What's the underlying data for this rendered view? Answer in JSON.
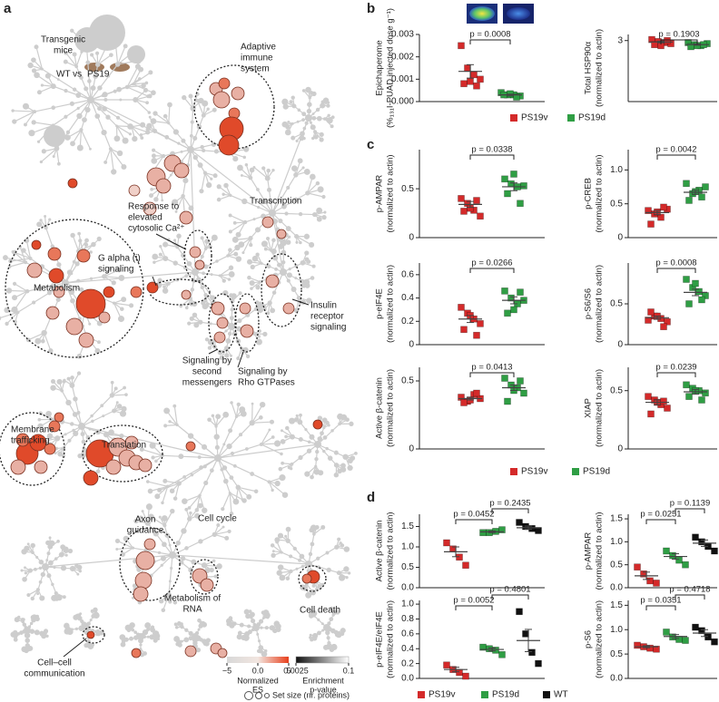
{
  "panel_labels": [
    "a",
    "b",
    "c",
    "d"
  ],
  "diagram": {
    "mice": {
      "lines": [
        "Transgenic",
        "mice"
      ],
      "wt": "WT vs",
      "ps19": "PS19"
    },
    "pathways": [
      {
        "lines": [
          "Adaptive",
          "immune",
          "system"
        ]
      },
      {
        "lines": [
          "Response to",
          "elevated",
          "cytosolic Ca²⁺"
        ]
      },
      {
        "lines": [
          "Transcription"
        ]
      },
      {
        "lines": [
          "G alpha (i)",
          "signaling"
        ]
      },
      {
        "lines": [
          "Metabolism"
        ]
      },
      {
        "lines": [
          "Insulin",
          "receptor",
          "signaling"
        ]
      },
      {
        "lines": [
          "Signaling by",
          "second",
          "messengers"
        ]
      },
      {
        "lines": [
          "Signaling by",
          "Rho GTPases"
        ]
      },
      {
        "lines": [
          "Membrane",
          "trafficking"
        ]
      },
      {
        "lines": [
          "Translation"
        ]
      },
      {
        "lines": [
          "Axon",
          "guidance"
        ]
      },
      {
        "lines": [
          "Cell cycle"
        ]
      },
      {
        "lines": [
          "Metabolism of",
          "RNA"
        ]
      },
      {
        "lines": [
          "Cell death"
        ]
      },
      {
        "lines": [
          "Cell–cell",
          "communication"
        ]
      }
    ],
    "legend": {
      "es_title": [
        "Normalized",
        "ES"
      ],
      "es_lim": [
        -5,
        5
      ],
      "es_ticks": [
        {
          "value": -5,
          "label": "−5"
        },
        {
          "value": 0,
          "label": "0.0"
        },
        5
      ],
      "p_title": [
        "Enrichment",
        "p-value"
      ],
      "p_lim": [
        0.0025,
        0.1
      ],
      "p_ticks": [
        0.0025,
        0.1
      ],
      "size_title": "Set size (nr. proteins)"
    }
  },
  "legends": [
    {
      "entries": [
        {
          "name": "PS19v",
          "color": "#d42a2a"
        },
        {
          "name": "PS19d",
          "color": "#2f9e44"
        }
      ]
    },
    {
      "entries": [
        {
          "name": "PS19v",
          "color": "#d42a2a"
        },
        {
          "name": "PS19d",
          "color": "#2f9e44"
        }
      ]
    },
    {
      "entries": [
        {
          "name": "PS19v",
          "color": "#d42a2a"
        },
        {
          "name": "PS19d",
          "color": "#2f9e44"
        },
        {
          "name": "WT",
          "color": "#111111"
        }
      ]
    }
  ],
  "chart_data": [
    {
      "type": "dotplot",
      "ylabel": [
        "Epichaperome",
        "(%₁₃₁I-PUAD injected dose g⁻¹)"
      ],
      "ylim": [
        0,
        0.003
      ],
      "yticks": [
        {
          "value": 0,
          "label": "0.000"
        },
        0.001,
        0.002,
        0.003
      ],
      "series": [
        {
          "color": "#d42a2a",
          "values": [
            0.0025,
            0.0015,
            0.0012,
            0.001,
            0.0008,
            0.0007,
            0.0009
          ],
          "mean": 0.00135,
          "error": 0.0003
        },
        {
          "color": "#2f9e44",
          "values": [
            0.0004,
            0.0003,
            0.0003,
            0.00025,
            0.0003,
            0.0002,
            0.00035
          ],
          "mean": 0.0003,
          "error": 3e-05
        }
      ],
      "comparisons": [
        "p = 0.0008"
      ]
    },
    {
      "type": "dotplot",
      "ylabel": [
        "Total HSP90α",
        "(normalized to actin)"
      ],
      "ylim": [
        0,
        3.3
      ],
      "yticks": [
        3
      ],
      "series": [
        {
          "color": "#d42a2a",
          "values": [
            3.05,
            2.95,
            2.9,
            2.85,
            2.8,
            3.0,
            2.75
          ],
          "mean": 2.93,
          "error": 0.04
        },
        {
          "color": "#2f9e44",
          "values": [
            2.9,
            2.8,
            2.75,
            2.85,
            2.7,
            2.8,
            2.75
          ],
          "mean": 2.8,
          "error": 0.03
        }
      ],
      "comparisons": [
        "p = 0.1903"
      ]
    },
    {
      "type": "dotplot",
      "ylabel": [
        "p-AMPAR",
        "(normalized to actin)"
      ],
      "ylim": [
        0,
        0.9
      ],
      "yticks": [
        0,
        0.5
      ],
      "series": [
        {
          "color": "#d42a2a",
          "values": [
            0.4,
            0.35,
            0.28,
            0.22,
            0.27,
            0.38,
            0.3
          ],
          "mean": 0.34,
          "error": 0.03
        },
        {
          "color": "#2f9e44",
          "values": [
            0.6,
            0.55,
            0.52,
            0.53,
            0.45,
            0.35,
            0.65
          ],
          "mean": 0.52,
          "error": 0.04
        }
      ],
      "comparisons": [
        "p = 0.0338"
      ]
    },
    {
      "type": "dotplot",
      "ylabel": [
        "p-CREB",
        "(normalized to actin)"
      ],
      "ylim": [
        0,
        1.3
      ],
      "yticks": [
        0,
        0.5,
        {
          "value": 1,
          "label": "1.0"
        }
      ],
      "series": [
        {
          "color": "#d42a2a",
          "values": [
            0.4,
            0.35,
            0.3,
            0.42,
            0.2,
            0.45,
            0.38
          ],
          "mean": 0.37,
          "error": 0.03
        },
        {
          "color": "#2f9e44",
          "values": [
            0.8,
            0.65,
            0.7,
            0.75,
            0.55,
            0.6,
            0.68
          ],
          "mean": 0.67,
          "error": 0.03
        }
      ],
      "comparisons": [
        "p = 0.0042"
      ]
    },
    {
      "type": "dotplot",
      "ylabel": [
        "p-eIF4E",
        "(normalized to actin)"
      ],
      "ylim": [
        0,
        0.7
      ],
      "yticks": [
        0,
        0.2,
        0.4,
        0.6
      ],
      "series": [
        {
          "color": "#d42a2a",
          "values": [
            0.32,
            0.27,
            0.22,
            0.18,
            0.13,
            0.08,
            0.25
          ],
          "mean": 0.22,
          "error": 0.03
        },
        {
          "color": "#2f9e44",
          "values": [
            0.46,
            0.4,
            0.35,
            0.38,
            0.27,
            0.45,
            0.3
          ],
          "mean": 0.38,
          "error": 0.03
        }
      ],
      "comparisons": [
        "p = 0.0266"
      ]
    },
    {
      "type": "dotplot",
      "ylabel": [
        "p-S6/S6",
        "(normalized to actin)"
      ],
      "ylim": [
        0,
        1.0
      ],
      "yticks": [
        0,
        0.5
      ],
      "series": [
        {
          "color": "#d42a2a",
          "values": [
            0.3,
            0.35,
            0.32,
            0.28,
            0.4,
            0.22,
            0.35
          ],
          "mean": 0.33,
          "error": 0.02
        },
        {
          "color": "#2f9e44",
          "values": [
            0.8,
            0.7,
            0.65,
            0.6,
            0.5,
            0.55,
            0.75
          ],
          "mean": 0.64,
          "error": 0.04
        }
      ],
      "comparisons": [
        "p = 0.0008"
      ]
    },
    {
      "type": "dotplot",
      "ylabel": [
        "Active β-catenin",
        "(normalized to actin)"
      ],
      "ylim": [
        0,
        0.6
      ],
      "yticks": [
        0,
        0.5
      ],
      "series": [
        {
          "color": "#d42a2a",
          "values": [
            0.38,
            0.35,
            0.4,
            0.37,
            0.34,
            0.41,
            0.36
          ],
          "mean": 0.37,
          "error": 0.01
        },
        {
          "color": "#2f9e44",
          "values": [
            0.52,
            0.47,
            0.45,
            0.41,
            0.35,
            0.5,
            0.43
          ],
          "mean": 0.45,
          "error": 0.02
        }
      ],
      "comparisons": [
        "p = 0.0413"
      ]
    },
    {
      "type": "dotplot",
      "ylabel": [
        "XIAP",
        "(normalized to actin)"
      ],
      "ylim": [
        0,
        0.7
      ],
      "yticks": [
        0,
        0.5
      ],
      "series": [
        {
          "color": "#d42a2a",
          "values": [
            0.45,
            0.42,
            0.38,
            0.35,
            0.3,
            0.41,
            0.4
          ],
          "mean": 0.4,
          "error": 0.02
        },
        {
          "color": "#2f9e44",
          "values": [
            0.55,
            0.52,
            0.5,
            0.48,
            0.45,
            0.42,
            0.5
          ],
          "mean": 0.49,
          "error": 0.02
        }
      ],
      "comparisons": [
        "p = 0.0239"
      ]
    },
    {
      "type": "dotplot",
      "ylabel": [
        "Active β-catenin",
        "(normalized to actin)"
      ],
      "ylim": [
        0,
        1.8
      ],
      "yticks": [
        {
          "value": 0,
          "label": "0.0"
        },
        0.5,
        {
          "value": 1,
          "label": "1.0"
        },
        1.5
      ],
      "series": [
        {
          "color": "#d42a2a",
          "values": [
            1.1,
            0.95,
            0.75,
            0.55
          ],
          "mean": 0.88,
          "error": 0.12
        },
        {
          "color": "#2f9e44",
          "values": [
            1.35,
            1.35,
            1.38,
            1.42
          ],
          "mean": 1.37,
          "error": 0.02
        },
        {
          "color": "#111111",
          "values": [
            1.6,
            1.5,
            1.45,
            1.4
          ],
          "mean": 1.47,
          "error": 0.04
        }
      ],
      "comparisons": [
        "p = 0.0452",
        "p = 0.2435"
      ]
    },
    {
      "type": "dotplot",
      "ylabel": [
        "p-AMPAR",
        "(normalized to actin)"
      ],
      "ylim": [
        0,
        1.6
      ],
      "yticks": [
        {
          "value": 0,
          "label": "0.0"
        },
        0.5,
        {
          "value": 1,
          "label": "1.0"
        },
        1.5
      ],
      "series": [
        {
          "color": "#d42a2a",
          "values": [
            0.45,
            0.3,
            0.15,
            0.1
          ],
          "mean": 0.26,
          "error": 0.08
        },
        {
          "color": "#2f9e44",
          "values": [
            0.8,
            0.7,
            0.6,
            0.5
          ],
          "mean": 0.68,
          "error": 0.06
        },
        {
          "color": "#111111",
          "values": [
            1.1,
            1.0,
            0.9,
            0.8
          ],
          "mean": 0.97,
          "error": 0.07
        }
      ],
      "comparisons": [
        "p = 0.0251",
        "p = 0.1139"
      ]
    },
    {
      "type": "dotplot",
      "ylabel": [
        "p-eIF4E/eIF4E",
        "(normalized to actin)"
      ],
      "ylim": [
        0,
        1.05
      ],
      "yticks": [
        {
          "value": 0,
          "label": "0.0"
        },
        0.2,
        0.4,
        0.6,
        0.8,
        {
          "value": 1,
          "label": "1.0"
        }
      ],
      "series": [
        {
          "color": "#d42a2a",
          "values": [
            0.18,
            0.12,
            0.08,
            0.03
          ],
          "mean": 0.12,
          "error": 0.03
        },
        {
          "color": "#2f9e44",
          "values": [
            0.42,
            0.4,
            0.38,
            0.32
          ],
          "mean": 0.39,
          "error": 0.02
        },
        {
          "color": "#111111",
          "values": [
            0.9,
            0.6,
            0.35,
            0.2
          ],
          "mean": 0.51,
          "error": 0.15
        }
      ],
      "comparisons": [
        "p = 0.0052",
        "p = 0.4801"
      ]
    },
    {
      "type": "dotplot",
      "ylabel": [
        "p-S6",
        "(normalized to actin)"
      ],
      "ylim": [
        0,
        1.6
      ],
      "yticks": [
        {
          "value": 0,
          "label": "0.0"
        },
        0.5,
        {
          "value": 1,
          "label": "1.0"
        },
        1.5
      ],
      "series": [
        {
          "color": "#d42a2a",
          "values": [
            0.68,
            0.65,
            0.62,
            0.6
          ],
          "mean": 0.65,
          "error": 0.02
        },
        {
          "color": "#2f9e44",
          "values": [
            0.95,
            0.85,
            0.8,
            0.78
          ],
          "mean": 0.86,
          "error": 0.04
        },
        {
          "color": "#111111",
          "values": [
            1.05,
            0.98,
            0.85,
            0.75
          ],
          "mean": 0.93,
          "error": 0.07
        }
      ],
      "comparisons": [
        "p = 0.0351",
        "p = 0.4718"
      ]
    }
  ]
}
